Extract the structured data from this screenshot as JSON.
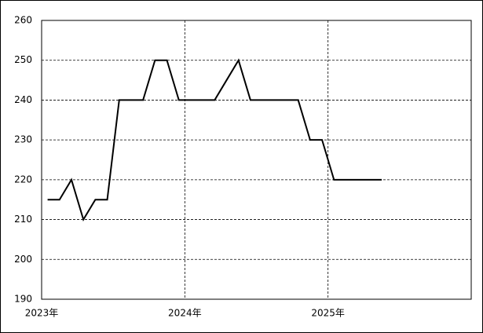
{
  "chart_data": {
    "type": "line",
    "x": [
      0.5,
      1.5,
      2.5,
      3.5,
      4.5,
      5.5,
      6.5,
      7.5,
      8.5,
      9.5,
      10.5,
      11.5,
      12.5,
      13.5,
      14.5,
      15.5,
      16.5,
      17.5,
      18.5,
      19.5,
      20.5,
      21.5,
      22.5,
      23.5,
      24.5,
      25.5,
      26.5,
      27.5,
      28.5
    ],
    "series": [
      {
        "color": "#000000",
        "values": [
          215,
          215,
          220,
          210,
          215,
          215,
          240,
          240,
          240,
          250,
          250,
          240,
          240,
          240,
          240,
          245,
          250,
          240,
          240,
          240,
          240,
          240,
          230,
          230,
          220,
          220,
          220,
          220,
          220
        ]
      }
    ],
    "xlim": [
      0,
      36
    ],
    "xticks": [
      {
        "value": 0,
        "label": "2023年"
      },
      {
        "value": 12,
        "label": "2024年"
      },
      {
        "value": 24,
        "label": "2025年"
      }
    ],
    "ylim": [
      190,
      260
    ],
    "yticks": [
      190,
      200,
      210,
      220,
      230,
      240,
      250,
      260
    ],
    "grid": true
  }
}
